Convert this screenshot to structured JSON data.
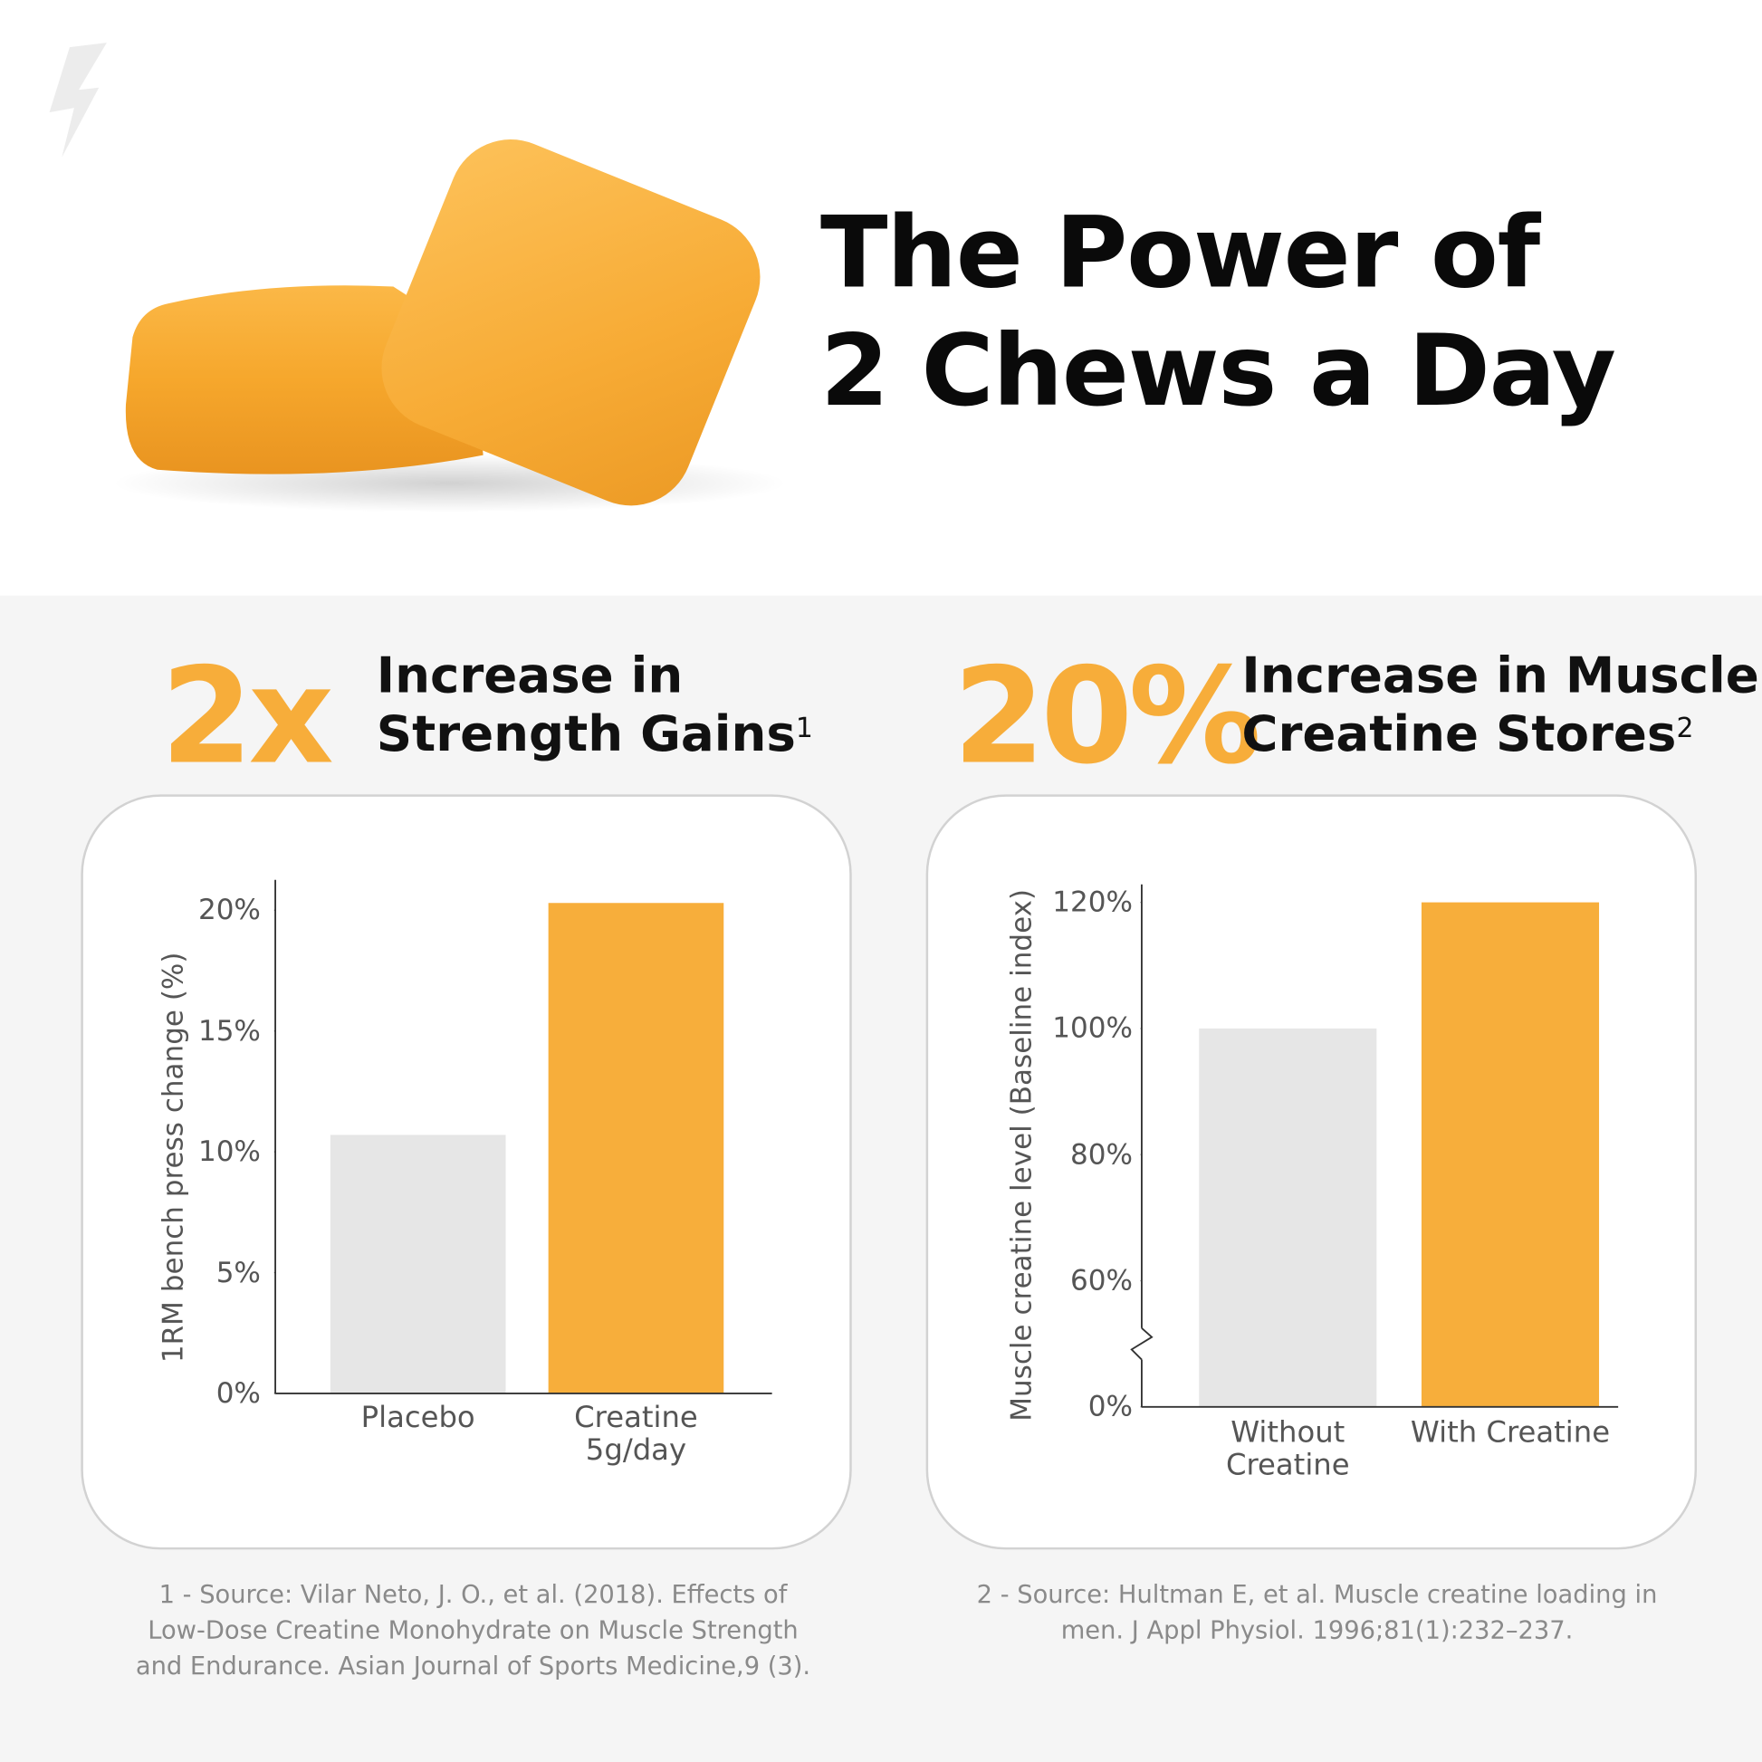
{
  "header": {
    "title": "The Power of\n2 Chews a Day"
  },
  "chart_data": [
    {
      "type": "bar",
      "stat": "2x",
      "headline": "Increase in\nStrength Gains",
      "footnote_mark": "1",
      "y_label": "1RM bench press change (%)",
      "categories": [
        "Placebo",
        "Creatine\n5g/day"
      ],
      "values": [
        10.7,
        20.3
      ],
      "colors": [
        "#e6e6e6",
        "#f7ae3b"
      ],
      "ylim": [
        0,
        21.3
      ],
      "yticks": [
        {
          "value": 0,
          "label": "0%"
        },
        {
          "value": 5,
          "label": "5%"
        },
        {
          "value": 10,
          "label": "10%"
        },
        {
          "value": 15,
          "label": "15%"
        },
        {
          "value": 20,
          "label": "20%"
        }
      ],
      "axis_break": false,
      "source": "1 - Source: Vilar Neto, J. O., et al. (2018). Effects of\nLow-Dose Creatine Monohydrate on Muscle Strength\nand Endurance. Asian Journal of Sports Medicine,9 (3)."
    },
    {
      "type": "bar",
      "stat": "20%",
      "headline": "Increase in Muscle\nCreatine Stores",
      "footnote_mark": "2",
      "y_label": "Muscle creatine level (Baseline index)",
      "categories": [
        "Without\nCreatine",
        "With Creatine"
      ],
      "values": [
        100,
        120
      ],
      "colors": [
        "#e6e6e6",
        "#f7ae3b"
      ],
      "ylim": [
        0,
        123
      ],
      "yticks": [
        {
          "value": 0,
          "label": "0%"
        },
        {
          "value": 60,
          "label": "60%"
        },
        {
          "value": 80,
          "label": "80%"
        },
        {
          "value": 100,
          "label": "100%"
        },
        {
          "value": 120,
          "label": "120%"
        }
      ],
      "axis_break": true,
      "source": "2 - Source: Hultman E, et al. Muscle creatine loading in\nmen. J Appl Physiol. 1996;81(1):232–237."
    }
  ]
}
